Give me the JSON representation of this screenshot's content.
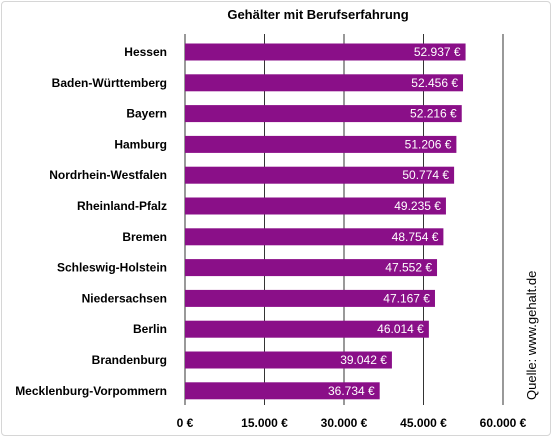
{
  "chart_data": {
    "type": "bar",
    "orientation": "horizontal",
    "title": "Gehälter mit Berufserfahrung",
    "categories": [
      "Hessen",
      "Baden-Württemberg",
      "Bayern",
      "Hamburg",
      "Nordrhein-Westfalen",
      "Rheinland-Pfalz",
      "Bremen",
      "Schleswig-Holstein",
      "Niedersachsen",
      "Berlin",
      "Brandenburg",
      "Mecklenburg-Vorpommern"
    ],
    "values": [
      52937,
      52456,
      52216,
      51206,
      50774,
      49235,
      48754,
      47552,
      47167,
      46014,
      39042,
      36734
    ],
    "value_labels": [
      "52.937 €",
      "52.456 €",
      "52.216 €",
      "51.206 €",
      "50.774 €",
      "49.235 €",
      "48.754 €",
      "47.552 €",
      "47.167 €",
      "46.014 €",
      "39.042 €",
      "36.734 €"
    ],
    "xlim": [
      0,
      60000
    ],
    "ticks": [
      0,
      15000,
      30000,
      45000,
      60000
    ],
    "tick_labels": [
      "0 €",
      "15.000 €",
      "30.000 €",
      "45.000 €",
      "60.000 €"
    ],
    "grid": true,
    "bar_color": "#8a0f88",
    "source": "Quelle: www.gehalt.de"
  }
}
